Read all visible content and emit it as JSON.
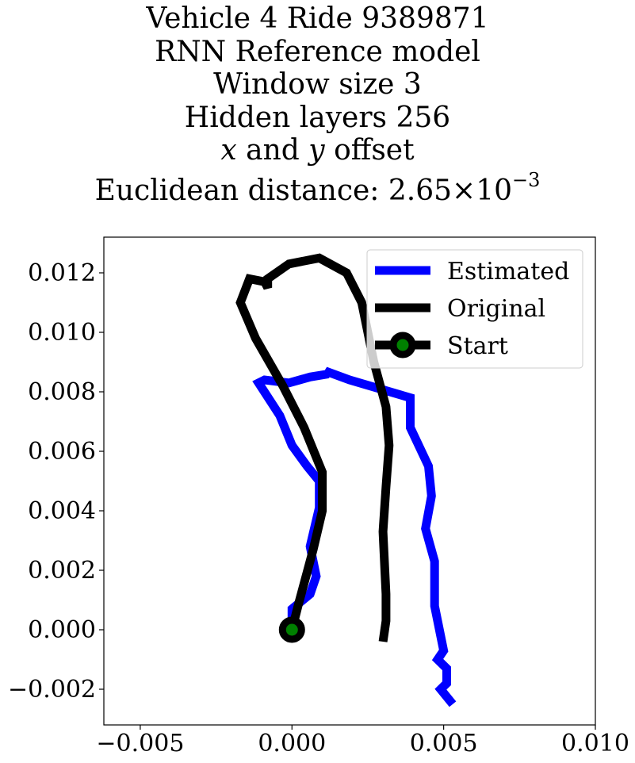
{
  "chart_data": {
    "type": "line",
    "title": {
      "line1": "Vehicle 4 Ride 9389871",
      "line2": "RNN Reference model",
      "line3": "Window size 3",
      "line4": "Hidden layers 256",
      "line5_x": "x",
      "line5_and": " and ",
      "line5_y": "y",
      "line5_rest": " offset",
      "line6_prefix": "Euclidean distance: ",
      "line6_mantissa": "2.65",
      "line6_times": "×",
      "line6_base": "10",
      "line6_exponent": "−3"
    },
    "xlim": [
      -0.0062,
      0.01
    ],
    "ylim": [
      -0.0032,
      0.0132
    ],
    "x_ticks": [
      -0.005,
      0.0,
      0.005,
      0.01
    ],
    "x_tick_labels": [
      "−0.005",
      "0.000",
      "0.005",
      "0.010"
    ],
    "y_ticks": [
      -0.002,
      0.0,
      0.002,
      0.004,
      0.006,
      0.008,
      0.01,
      0.012
    ],
    "y_tick_labels": [
      "−0.002",
      "0.000",
      "0.002",
      "0.004",
      "0.006",
      "0.008",
      "0.010",
      "0.012"
    ],
    "grid": false,
    "legend_position": "top-right",
    "series": [
      {
        "name": "Estimated",
        "color": "#0000ff",
        "points": [
          [
            0.0,
            0.0
          ],
          [
            0.0,
            0.0007
          ],
          [
            0.0006,
            0.0012
          ],
          [
            0.0008,
            0.0018
          ],
          [
            0.0006,
            0.0028
          ],
          [
            0.0009,
            0.0041
          ],
          [
            0.0009,
            0.005
          ],
          [
            0.0005,
            0.0055
          ],
          [
            0.0,
            0.0062
          ],
          [
            -0.0004,
            0.0072
          ],
          [
            -0.0011,
            0.0083
          ],
          [
            -0.0009,
            0.0084
          ],
          [
            -0.0001,
            0.0083
          ],
          [
            0.0006,
            0.0085
          ],
          [
            0.0012,
            0.0086
          ],
          [
            0.0011,
            0.0087
          ],
          [
            0.0019,
            0.0084
          ],
          [
            0.0039,
            0.0078
          ],
          [
            0.0039,
            0.0068
          ],
          [
            0.0045,
            0.0055
          ],
          [
            0.0046,
            0.0045
          ],
          [
            0.0044,
            0.0034
          ],
          [
            0.0047,
            0.0023
          ],
          [
            0.0047,
            0.0008
          ],
          [
            0.0049,
            -0.0002
          ],
          [
            0.005,
            -0.0007
          ],
          [
            0.0048,
            -0.001
          ],
          [
            0.0051,
            -0.0013
          ],
          [
            0.0051,
            -0.0018
          ],
          [
            0.0049,
            -0.002
          ],
          [
            0.0053,
            -0.0025
          ]
        ]
      },
      {
        "name": "Original",
        "color": "#000000",
        "points": [
          [
            0.0,
            0.0
          ],
          [
            0.0002,
            0.0008
          ],
          [
            0.0007,
            0.0027
          ],
          [
            0.001,
            0.004
          ],
          [
            0.001,
            0.0053
          ],
          [
            0.0004,
            0.0068
          ],
          [
            -0.0003,
            0.0082
          ],
          [
            -0.0012,
            0.0098
          ],
          [
            -0.0017,
            0.011
          ],
          [
            -0.0014,
            0.0118
          ],
          [
            -0.0009,
            0.0117
          ],
          [
            -0.0008,
            0.0115
          ],
          [
            -0.0008,
            0.0118
          ],
          [
            -0.0001,
            0.0123
          ],
          [
            0.0009,
            0.0125
          ],
          [
            0.0018,
            0.012
          ],
          [
            0.0023,
            0.011
          ],
          [
            0.0027,
            0.009
          ],
          [
            0.0031,
            0.0075
          ],
          [
            0.0032,
            0.0062
          ],
          [
            0.0031,
            0.0048
          ],
          [
            0.003,
            0.0033
          ],
          [
            0.0031,
            0.0012
          ],
          [
            0.0031,
            0.0003
          ],
          [
            0.003,
            -0.0004
          ]
        ]
      }
    ],
    "start_marker": {
      "name": "Start",
      "x": 0.0,
      "y": 0.0,
      "color": "#000000",
      "fill": "#008000"
    },
    "legend": [
      {
        "label": "Estimated",
        "color": "#0000ff",
        "marker": false
      },
      {
        "label": "Original",
        "color": "#000000",
        "marker": false
      },
      {
        "label": "Start",
        "color": "#000000",
        "marker": true,
        "marker_fill": "#008000"
      }
    ]
  }
}
